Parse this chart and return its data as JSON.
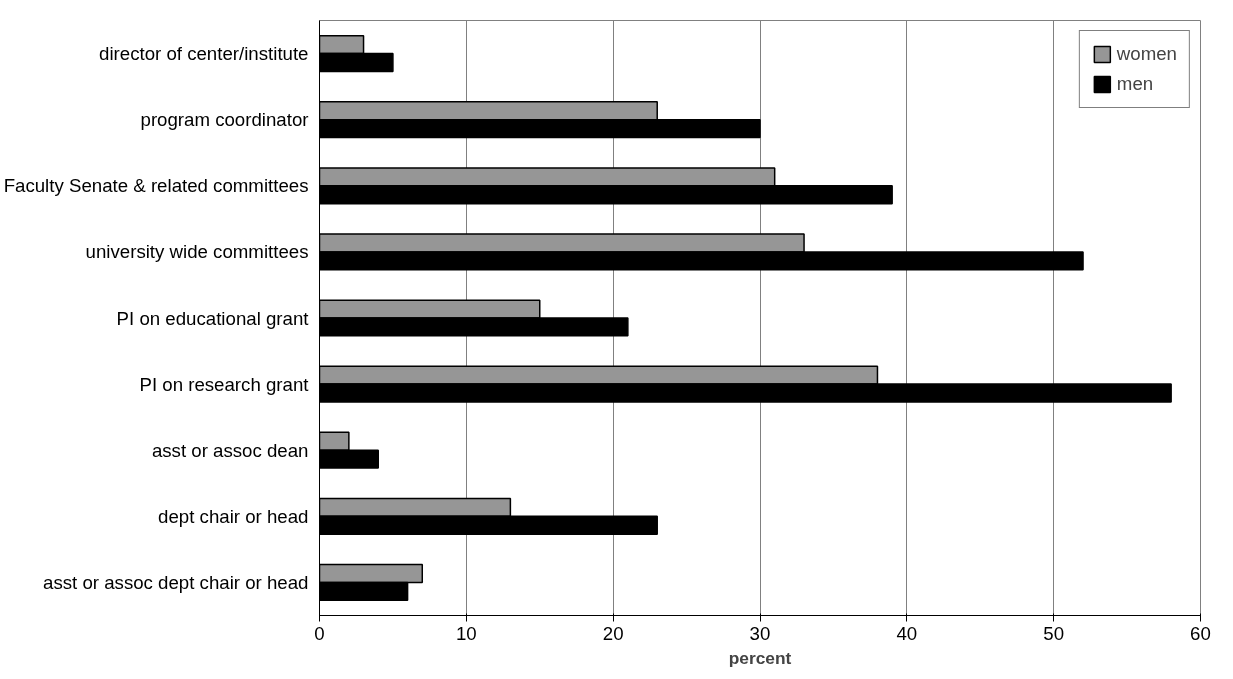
{
  "chart_data": {
    "type": "bar",
    "orientation": "horizontal",
    "xlabel": "percent",
    "categories": [
      "director of center/institute",
      "program coordinator",
      "Faculty Senate & related committees",
      "university wide committees",
      "PI on educational grant",
      "PI on research grant",
      "asst or assoc dean",
      "dept chair or head",
      "asst or assoc dept chair or head"
    ],
    "series": [
      {
        "name": "women",
        "color": "#969696",
        "values": [
          3,
          23,
          31,
          33,
          15,
          38,
          2,
          13,
          7
        ]
      },
      {
        "name": "men",
        "color": "#000000",
        "values": [
          5,
          30,
          39,
          52,
          21,
          58,
          4,
          23,
          6
        ]
      }
    ],
    "xlim": [
      0,
      60
    ],
    "xticks": [
      0,
      10,
      20,
      30,
      40,
      50,
      60
    ],
    "grid": "x",
    "legend": "top right"
  }
}
